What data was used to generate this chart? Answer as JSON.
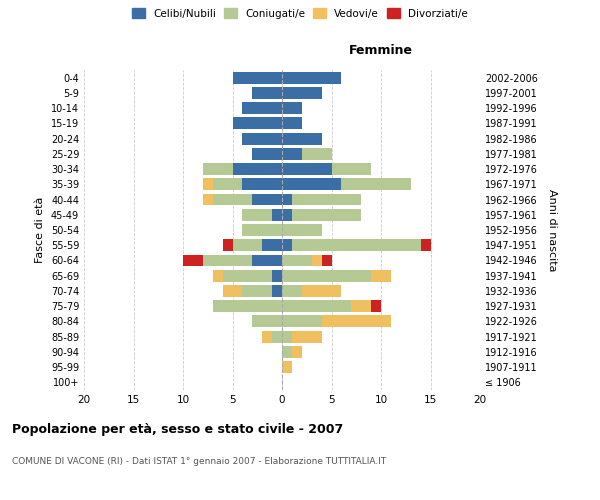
{
  "age_groups": [
    "100+",
    "95-99",
    "90-94",
    "85-89",
    "80-84",
    "75-79",
    "70-74",
    "65-69",
    "60-64",
    "55-59",
    "50-54",
    "45-49",
    "40-44",
    "35-39",
    "30-34",
    "25-29",
    "20-24",
    "15-19",
    "10-14",
    "5-9",
    "0-4"
  ],
  "birth_years": [
    "≤ 1906",
    "1907-1911",
    "1912-1916",
    "1917-1921",
    "1922-1926",
    "1927-1931",
    "1932-1936",
    "1937-1941",
    "1942-1946",
    "1947-1951",
    "1952-1956",
    "1957-1961",
    "1962-1966",
    "1967-1971",
    "1972-1976",
    "1977-1981",
    "1982-1986",
    "1987-1991",
    "1992-1996",
    "1997-2001",
    "2002-2006"
  ],
  "male": {
    "celibi": [
      0,
      0,
      0,
      0,
      0,
      0,
      1,
      1,
      3,
      2,
      0,
      1,
      3,
      4,
      5,
      3,
      4,
      5,
      4,
      3,
      5
    ],
    "coniugati": [
      0,
      0,
      0,
      1,
      3,
      7,
      3,
      5,
      5,
      3,
      4,
      3,
      4,
      3,
      3,
      0,
      0,
      0,
      0,
      0,
      0
    ],
    "vedovi": [
      0,
      0,
      0,
      1,
      0,
      0,
      2,
      1,
      0,
      0,
      0,
      0,
      1,
      1,
      0,
      0,
      0,
      0,
      0,
      0,
      0
    ],
    "divorziati": [
      0,
      0,
      0,
      0,
      0,
      0,
      0,
      0,
      2,
      1,
      0,
      0,
      0,
      0,
      0,
      0,
      0,
      0,
      0,
      0,
      0
    ]
  },
  "female": {
    "nubili": [
      0,
      0,
      0,
      0,
      0,
      0,
      0,
      0,
      0,
      1,
      0,
      1,
      1,
      6,
      5,
      2,
      4,
      2,
      2,
      4,
      6
    ],
    "coniugate": [
      0,
      0,
      1,
      1,
      4,
      7,
      2,
      9,
      3,
      13,
      4,
      7,
      7,
      7,
      4,
      3,
      0,
      0,
      0,
      0,
      0
    ],
    "vedove": [
      0,
      1,
      1,
      3,
      7,
      2,
      4,
      2,
      1,
      0,
      0,
      0,
      0,
      0,
      0,
      0,
      0,
      0,
      0,
      0,
      0
    ],
    "divorziate": [
      0,
      0,
      0,
      0,
      0,
      1,
      0,
      0,
      1,
      1,
      0,
      0,
      0,
      0,
      0,
      0,
      0,
      0,
      0,
      0,
      0
    ]
  },
  "colors": {
    "celibi": "#3a6ea5",
    "coniugati": "#b5c994",
    "vedovi": "#f0c060",
    "divorziati": "#cc2222"
  },
  "xlim": 20,
  "title": "Popolazione per età, sesso e stato civile - 2007",
  "subtitle": "COMUNE DI VACONE (RI) - Dati ISTAT 1° gennaio 2007 - Elaborazione TUTTITALIA.IT",
  "ylabel_left": "Fasce di età",
  "ylabel_right": "Anni di nascita",
  "xlabel_right": "Femmine"
}
